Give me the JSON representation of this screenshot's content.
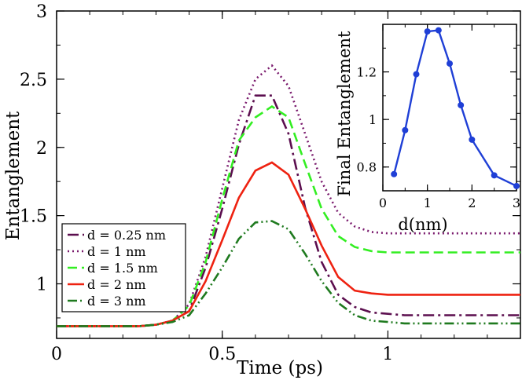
{
  "chart_data": [
    {
      "type": "line",
      "xlabel": "Time (ps)",
      "ylabel": "Entanglement",
      "xlim": [
        0,
        1.4
      ],
      "ylim": [
        0.6,
        3
      ],
      "xticks": [
        0,
        0.5,
        1
      ],
      "xtick_labels": [
        "0",
        "0.5",
        "1"
      ],
      "yticks": [
        1,
        1.5,
        2,
        2.5,
        3
      ],
      "ytick_labels": [
        "1",
        "1.5",
        "2",
        "2.5",
        "3"
      ],
      "legend_position": "bottom-left",
      "series": [
        {
          "name": "d = 0.25 nm",
          "color": "#5c0f4f",
          "dash": "14,5,3,5",
          "x": [
            0,
            0.05,
            0.1,
            0.15,
            0.2,
            0.25,
            0.3,
            0.35,
            0.4,
            0.45,
            0.5,
            0.55,
            0.6,
            0.65,
            0.7,
            0.75,
            0.8,
            0.85,
            0.9,
            0.95,
            1.0,
            1.05,
            1.1,
            1.15,
            1.2,
            1.25,
            1.3,
            1.35,
            1.4
          ],
          "y": [
            0.69,
            0.69,
            0.69,
            0.69,
            0.69,
            0.69,
            0.7,
            0.73,
            0.8,
            1.12,
            1.55,
            2.02,
            2.38,
            2.38,
            2.1,
            1.56,
            1.16,
            0.92,
            0.83,
            0.79,
            0.78,
            0.77,
            0.77,
            0.77,
            0.77,
            0.77,
            0.77,
            0.77,
            0.77
          ]
        },
        {
          "name": "d = 1 nm",
          "color": "#7a1a6d",
          "dash": "2,4",
          "x": [
            0,
            0.05,
            0.1,
            0.15,
            0.2,
            0.25,
            0.3,
            0.35,
            0.4,
            0.45,
            0.5,
            0.55,
            0.6,
            0.65,
            0.7,
            0.75,
            0.8,
            0.85,
            0.9,
            0.95,
            1.0,
            1.05,
            1.1,
            1.15,
            1.2,
            1.25,
            1.3,
            1.35,
            1.4
          ],
          "y": [
            0.69,
            0.69,
            0.69,
            0.69,
            0.69,
            0.69,
            0.7,
            0.73,
            0.85,
            1.2,
            1.7,
            2.2,
            2.5,
            2.6,
            2.45,
            2.1,
            1.75,
            1.52,
            1.42,
            1.38,
            1.37,
            1.37,
            1.37,
            1.37,
            1.37,
            1.37,
            1.37,
            1.37,
            1.37
          ]
        },
        {
          "name": "d = 1.5 nm",
          "color": "#33ee22",
          "dash": "12,6",
          "x": [
            0,
            0.05,
            0.1,
            0.15,
            0.2,
            0.25,
            0.3,
            0.35,
            0.4,
            0.45,
            0.5,
            0.55,
            0.6,
            0.65,
            0.7,
            0.75,
            0.8,
            0.85,
            0.9,
            0.95,
            1.0,
            1.05,
            1.1,
            1.15,
            1.2,
            1.25,
            1.3,
            1.35,
            1.4
          ],
          "y": [
            0.69,
            0.69,
            0.69,
            0.69,
            0.69,
            0.69,
            0.7,
            0.73,
            0.84,
            1.16,
            1.62,
            2.05,
            2.22,
            2.3,
            2.22,
            1.88,
            1.55,
            1.35,
            1.27,
            1.24,
            1.23,
            1.23,
            1.23,
            1.23,
            1.23,
            1.23,
            1.23,
            1.23,
            1.23
          ]
        },
        {
          "name": "d = 2 nm",
          "color": "#ee2211",
          "dash": "",
          "x": [
            0,
            0.05,
            0.1,
            0.15,
            0.2,
            0.25,
            0.3,
            0.35,
            0.4,
            0.45,
            0.5,
            0.55,
            0.6,
            0.65,
            0.7,
            0.75,
            0.8,
            0.85,
            0.9,
            0.95,
            1.0,
            1.05,
            1.1,
            1.15,
            1.2,
            1.25,
            1.3,
            1.35,
            1.4
          ],
          "y": [
            0.69,
            0.69,
            0.69,
            0.69,
            0.69,
            0.69,
            0.7,
            0.73,
            0.8,
            1.02,
            1.32,
            1.63,
            1.83,
            1.89,
            1.8,
            1.55,
            1.28,
            1.05,
            0.95,
            0.93,
            0.92,
            0.92,
            0.92,
            0.92,
            0.92,
            0.92,
            0.92,
            0.92,
            0.92
          ]
        },
        {
          "name": "d = 3 nm",
          "color": "#1f7a1f",
          "dash": "12,4,2,4,2,4",
          "x": [
            0,
            0.05,
            0.1,
            0.15,
            0.2,
            0.25,
            0.3,
            0.35,
            0.4,
            0.45,
            0.5,
            0.55,
            0.6,
            0.65,
            0.7,
            0.75,
            0.8,
            0.85,
            0.9,
            0.95,
            1.0,
            1.05,
            1.1,
            1.15,
            1.2,
            1.25,
            1.3,
            1.35,
            1.4
          ],
          "y": [
            0.69,
            0.69,
            0.69,
            0.69,
            0.69,
            0.69,
            0.7,
            0.72,
            0.77,
            0.93,
            1.12,
            1.33,
            1.45,
            1.46,
            1.4,
            1.22,
            1.02,
            0.86,
            0.77,
            0.73,
            0.72,
            0.71,
            0.71,
            0.71,
            0.71,
            0.71,
            0.71,
            0.71,
            0.71
          ]
        }
      ]
    },
    {
      "type": "line",
      "xlabel": "d(nm)",
      "ylabel": "Final Entanglement",
      "xlim": [
        0,
        3
      ],
      "ylim": [
        0.7,
        1.4
      ],
      "xticks": [
        0,
        1,
        2,
        3
      ],
      "xtick_labels": [
        "0",
        "1",
        "2",
        "3"
      ],
      "yticks": [
        0.8,
        1,
        1.2
      ],
      "ytick_labels": [
        "0.8",
        "1",
        "1.2"
      ],
      "series": [
        {
          "color": "#1f3fd6",
          "marker": "circle",
          "x": [
            0.25,
            0.5,
            0.75,
            1.0,
            1.25,
            1.5,
            1.75,
            2.0,
            2.5,
            3.0
          ],
          "y": [
            0.77,
            0.955,
            1.19,
            1.37,
            1.375,
            1.235,
            1.06,
            0.915,
            0.765,
            0.72
          ]
        }
      ]
    }
  ]
}
